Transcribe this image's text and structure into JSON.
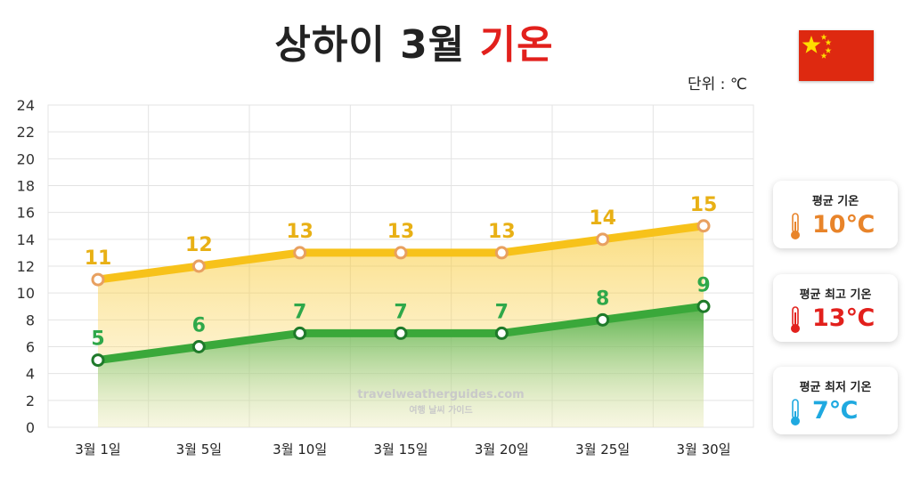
{
  "header": {
    "title_main": "상하이 3월",
    "title_accent": "기온",
    "unit": "단위 : ℃"
  },
  "watermark": {
    "line1": "travelweatherguides.com",
    "line2": "여행 날씨 가이드"
  },
  "cards": [
    {
      "label": "평균 기온",
      "value": "10℃",
      "color": "#e8842a"
    },
    {
      "label": "평균 최고 기온",
      "value": "13℃",
      "color": "#e2201c"
    },
    {
      "label": "평균 최저 기온",
      "value": "7℃",
      "color": "#1fa9e0"
    }
  ],
  "chart_data": {
    "type": "area",
    "categories": [
      "3월 1일",
      "3월 5일",
      "3월 10일",
      "3월 15일",
      "3월 20일",
      "3월 25일",
      "3월 30일"
    ],
    "series": [
      {
        "name": "",
        "values": [
          11,
          12,
          13,
          13,
          13,
          14,
          15
        ],
        "color": "#f7c21a",
        "label_color": "#e8b015"
      },
      {
        "name": "",
        "values": [
          5,
          6,
          7,
          7,
          7,
          8,
          9
        ],
        "color": "#3aa83a",
        "label_color": "#2fa84a"
      }
    ],
    "ylim": [
      0,
      24
    ],
    "yticks": [
      0,
      2,
      4,
      6,
      8,
      10,
      12,
      14,
      16,
      18,
      20,
      22,
      24
    ],
    "grid": true
  },
  "flag": {
    "colors": {
      "red": "#de2910",
      "star": "#ffde00"
    }
  }
}
